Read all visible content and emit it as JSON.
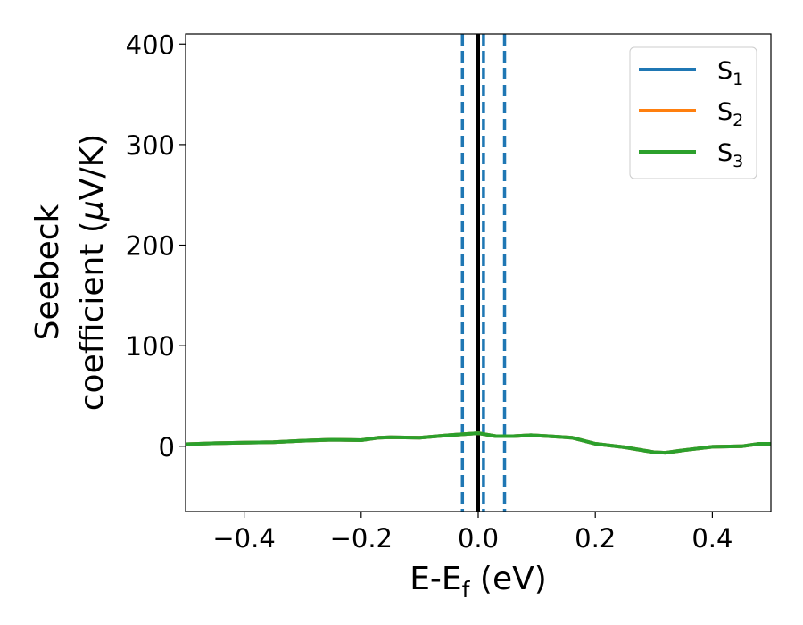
{
  "chart_data": {
    "type": "line",
    "title": "",
    "xlabel": {
      "main": "E-E",
      "sub": "f",
      "tail": " (eV)"
    },
    "ylabel": {
      "line1": "Seebeck",
      "line2": "coefficient  (",
      "mu": "μ",
      "line2_tail": "V/K)"
    },
    "xlim": [
      -0.5,
      0.5
    ],
    "ylim": [
      -65,
      410
    ],
    "x_ticks": [
      -0.4,
      -0.2,
      0.0,
      0.2,
      0.4
    ],
    "x_tick_labels": [
      "−0.4",
      "−0.2",
      "0.0",
      "0.2",
      "0.4"
    ],
    "y_ticks": [
      0,
      100,
      200,
      300,
      400
    ],
    "y_tick_labels": [
      "0",
      "100",
      "200",
      "300",
      "400"
    ],
    "grid": false,
    "legend_position": "top-right",
    "series": [
      {
        "name": "S",
        "sub": "1",
        "color": "#1f77b4"
      },
      {
        "name": "S",
        "sub": "2",
        "color": "#ff7f0e"
      },
      {
        "name": "S",
        "sub": "3",
        "color": "#2ca02c"
      }
    ],
    "x": [
      -0.5,
      -0.45,
      -0.4,
      -0.35,
      -0.3,
      -0.25,
      -0.2,
      -0.17,
      -0.15,
      -0.1,
      -0.05,
      0.0,
      0.03,
      0.06,
      0.09,
      0.12,
      0.16,
      0.2,
      0.25,
      0.3,
      0.32,
      0.35,
      0.4,
      0.45,
      0.48,
      0.5
    ],
    "y": [
      2,
      3,
      3.5,
      4,
      5.5,
      6.5,
      6,
      8.5,
      9,
      8.5,
      11,
      13,
      10,
      10,
      11,
      10,
      8.5,
      2.5,
      -1,
      -6,
      -6.5,
      -4,
      -0.5,
      0,
      2.5,
      2.5
    ],
    "vlines": [
      {
        "x": 0.0,
        "color": "#000000",
        "style": "solid"
      },
      {
        "x": -0.027,
        "color": "#1f77b4",
        "style": "dashed"
      },
      {
        "x": 0.009,
        "color": "#1f77b4",
        "style": "dashed"
      },
      {
        "x": 0.045,
        "color": "#1f77b4",
        "style": "dashed"
      }
    ]
  }
}
